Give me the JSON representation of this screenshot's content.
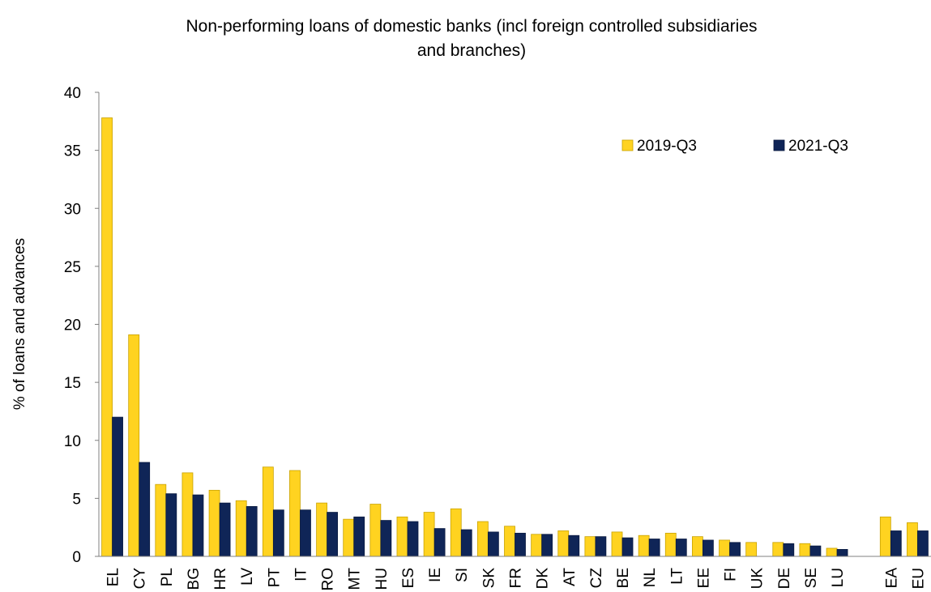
{
  "chart_data": {
    "type": "bar",
    "title_line1": "Non-performing loans of domestic banks (incl foreign controlled subsidiaries",
    "title_line2": "and branches)",
    "ylabel": "% of loans and advances",
    "xlabel": "",
    "ylim": [
      0,
      40
    ],
    "yticks": [
      0,
      5,
      10,
      15,
      20,
      25,
      30,
      35,
      40
    ],
    "grid": false,
    "legend_position": "top-right",
    "categories": [
      "EL",
      "CY",
      "PL",
      "BG",
      "HR",
      "LV",
      "PT",
      "IT",
      "RO",
      "MT",
      "HU",
      "ES",
      "IE",
      "SI",
      "SK",
      "FR",
      "DK",
      "AT",
      "CZ",
      "BE",
      "NL",
      "LT",
      "EE",
      "FI",
      "UK",
      "DE",
      "SE",
      "LU",
      "",
      "EA",
      "EU"
    ],
    "series": [
      {
        "name": "2019-Q3",
        "color": "#FFD320",
        "values": [
          37.8,
          19.1,
          6.2,
          7.2,
          5.7,
          4.8,
          7.7,
          7.4,
          4.6,
          3.2,
          4.5,
          3.4,
          3.8,
          4.1,
          3.0,
          2.6,
          1.9,
          2.2,
          1.7,
          2.1,
          1.8,
          2.0,
          1.7,
          1.4,
          1.2,
          1.2,
          1.1,
          0.7,
          null,
          3.4,
          2.9
        ]
      },
      {
        "name": "2021-Q3",
        "color": "#0F2557",
        "values": [
          12.0,
          8.1,
          5.4,
          5.3,
          4.6,
          4.3,
          4.0,
          4.0,
          3.8,
          3.4,
          3.1,
          3.0,
          2.4,
          2.3,
          2.1,
          2.0,
          1.9,
          1.8,
          1.7,
          1.6,
          1.5,
          1.5,
          1.4,
          1.2,
          null,
          1.1,
          0.9,
          0.6,
          null,
          2.2,
          2.2
        ]
      }
    ]
  }
}
